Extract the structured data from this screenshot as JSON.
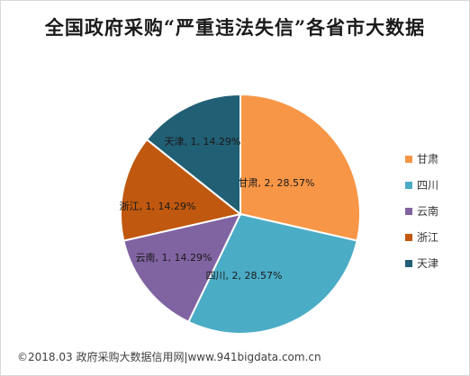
{
  "chart_data": {
    "type": "pie",
    "title": "全国政府采购“严重违法失信”各省市大数据",
    "categories": [
      "甘肃",
      "四川",
      "云南",
      "浙江",
      "天津"
    ],
    "values": [
      2,
      2,
      1,
      1,
      1
    ],
    "percents": [
      "28.57%",
      "28.57%",
      "14.29%",
      "14.29%",
      "14.29%"
    ],
    "data_labels": [
      "甘肃, 2, 28.57%",
      "四川, 2, 28.57%",
      "云南, 1, 14.29%",
      "浙江, 1, 14.29%",
      "天津, 1, 14.29%"
    ],
    "colors": [
      "#F79646",
      "#4BACC6",
      "#8064A2",
      "#C0580F",
      "#215F74"
    ],
    "start_angle": "12 o'clock, clockwise",
    "legend_position": "right"
  },
  "footer": "©2018.03 政府采购大数据信用网|www.941bigdata.com.cn"
}
